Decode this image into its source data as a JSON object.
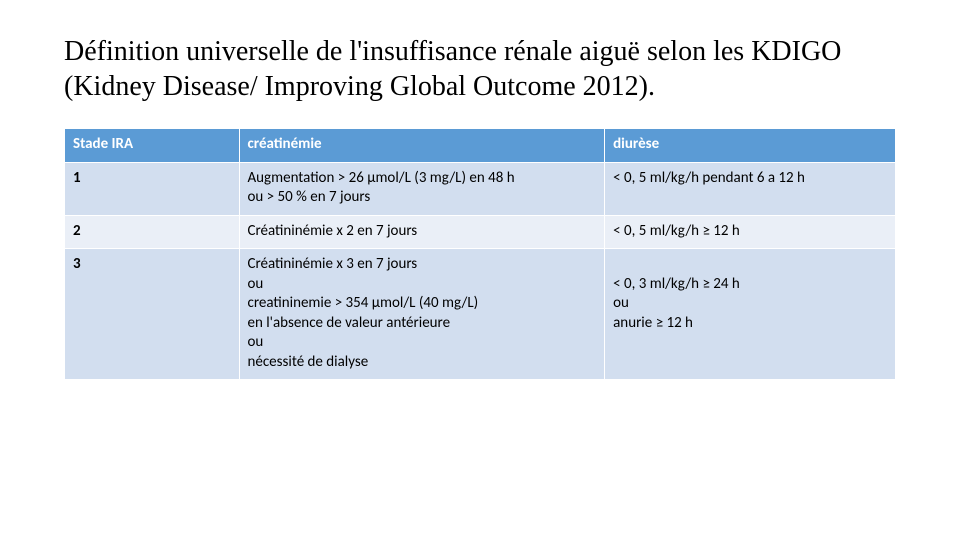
{
  "title": "Définition universelle de l'insuffisance rénale aiguë selon les KDIGO (Kidney Disease/ Improving Global Outcome 2012).",
  "table": {
    "type": "table",
    "header_bg": "#5b9bd5",
    "header_text_color": "#ffffff",
    "row_alt_bg_a": "#d2deef",
    "row_alt_bg_b": "#eaeff7",
    "border_color": "#ffffff",
    "font_size_pt": 11,
    "columns": [
      {
        "label": "Stade IRA",
        "width_pct": 21
      },
      {
        "label": "créatinémie",
        "width_pct": 44
      },
      {
        "label": "diurèse",
        "width_pct": 35
      }
    ],
    "rows": [
      {
        "stade": "1",
        "creatinemie": "Augmentation > 26 µmol/L (3 mg/L) en 48 h\nou > 50 % en 7 jours",
        "diurese": "< 0, 5 ml/kg/h pendant 6 a 12 h"
      },
      {
        "stade": "2",
        "creatinemie": "Créatininémie x 2 en 7 jours",
        "diurese": "< 0, 5 ml/kg/h ≥ 12 h"
      },
      {
        "stade": "3",
        "creatinemie": "Créatininémie x 3 en 7 jours\nou\ncreatininemie > 354 µmol/L (40 mg/L)\nen l'absence de valeur antérieure\nou\nnécessité de dialyse",
        "diurese": "\n< 0, 3 ml/kg/h ≥ 24 h\nou\nanurie ≥ 12 h"
      }
    ]
  }
}
